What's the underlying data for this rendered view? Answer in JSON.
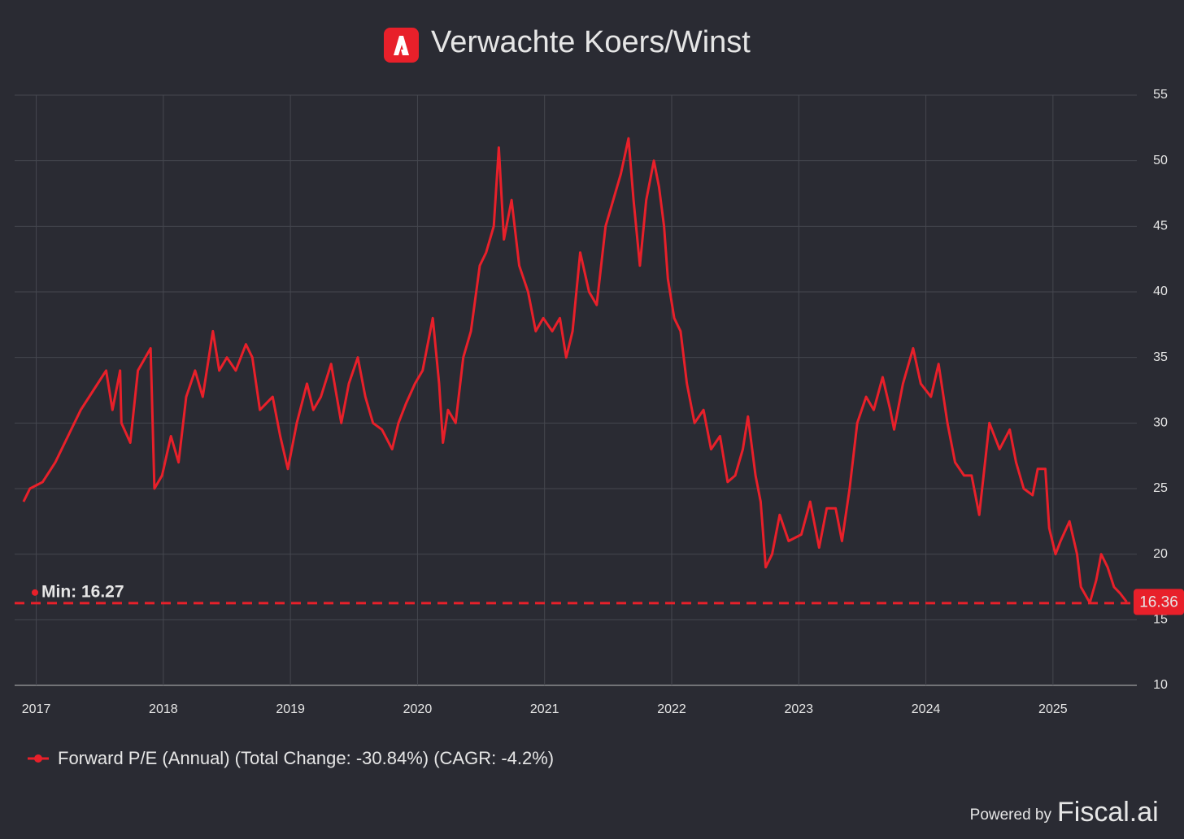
{
  "chart_data": {
    "type": "line",
    "title": "Verwachte Koers/Winst",
    "series": [
      {
        "name": "Forward P/E (Annual) (Total Change: -30.84%) (CAGR: -4.2%)",
        "color": "#e8202a",
        "x": [
          2016.9,
          2016.95,
          2017.05,
          2017.15,
          2017.25,
          2017.35,
          2017.45,
          2017.55,
          2017.6,
          2017.66,
          2017.67,
          2017.74,
          2017.8,
          2017.9,
          2017.93,
          2017.99,
          2018.06,
          2018.12,
          2018.18,
          2018.25,
          2018.31,
          2018.39,
          2018.44,
          2018.5,
          2018.57,
          2018.65,
          2018.7,
          2018.76,
          2018.86,
          2018.92,
          2018.98,
          2019.05,
          2019.13,
          2019.18,
          2019.24,
          2019.32,
          2019.4,
          2019.46,
          2019.53,
          2019.59,
          2019.65,
          2019.72,
          2019.8,
          2019.85,
          2019.91,
          2019.98,
          2020.04,
          2020.12,
          2020.17,
          2020.2,
          2020.24,
          2020.3,
          2020.36,
          2020.42,
          2020.49,
          2020.54,
          2020.6,
          2020.64,
          2020.68,
          2020.74,
          2020.8,
          2020.87,
          2020.93,
          2020.99,
          2021.06,
          2021.12,
          2021.17,
          2021.22,
          2021.28,
          2021.35,
          2021.41,
          2021.48,
          2021.54,
          2021.6,
          2021.66,
          2021.7,
          2021.75,
          2021.8,
          2021.86,
          2021.9,
          2021.94,
          2021.97,
          2022.02,
          2022.07,
          2022.12,
          2022.18,
          2022.25,
          2022.31,
          2022.38,
          2022.44,
          2022.5,
          2022.56,
          2022.6,
          2022.66,
          2022.7,
          2022.74,
          2022.79,
          2022.85,
          2022.92,
          2023.02,
          2023.09,
          2023.16,
          2023.22,
          2023.29,
          2023.34,
          2023.4,
          2023.46,
          2023.53,
          2023.59,
          2023.66,
          2023.72,
          2023.75,
          2023.82,
          2023.9,
          2023.96,
          2024.04,
          2024.1,
          2024.17,
          2024.23,
          2024.3,
          2024.36,
          2024.42,
          2024.5,
          2024.58,
          2024.66,
          2024.71,
          2024.77,
          2024.84,
          2024.88,
          2024.94,
          2024.97,
          2025.02,
          2025.06,
          2025.13,
          2025.19,
          2025.22,
          2025.29,
          2025.34,
          2025.38,
          2025.43,
          2025.48,
          2025.53,
          2025.58
        ],
        "values": [
          24,
          25,
          25.5,
          27,
          29,
          31,
          32.5,
          34,
          31,
          34,
          30,
          28.5,
          34,
          35.7,
          25,
          26,
          29,
          27,
          32,
          34,
          32,
          37,
          34,
          35,
          34,
          36,
          35,
          31,
          32,
          29,
          26.5,
          30,
          33,
          31,
          32,
          34.5,
          30,
          33,
          35,
          32,
          30,
          29.5,
          28,
          30,
          31.5,
          33,
          34,
          38,
          33,
          28.5,
          31,
          30,
          35,
          37,
          42,
          43,
          45,
          51,
          44,
          47,
          42,
          40,
          37,
          38,
          37,
          38,
          35,
          37,
          43,
          40,
          39,
          45,
          47,
          49,
          51.7,
          47,
          42,
          47,
          50,
          48,
          45,
          41,
          38,
          37,
          33,
          30,
          31,
          28,
          29,
          25.5,
          26,
          28,
          30.5,
          26,
          24,
          19,
          20,
          23,
          21,
          21.5,
          24,
          20.5,
          23.5,
          23.5,
          21,
          25,
          30,
          32,
          31,
          33.5,
          31,
          29.5,
          33,
          35.7,
          33,
          32,
          34.5,
          30,
          27,
          26,
          26,
          23,
          30,
          28,
          29.5,
          27,
          25,
          24.5,
          26.5,
          26.5,
          22,
          20,
          21,
          22.5,
          20,
          17.5,
          16.3,
          18,
          20,
          19,
          17.5,
          17,
          16.36
        ]
      }
    ],
    "min_label": "Min: 16.27",
    "min_value": 16.27,
    "xlim": [
      2016.83,
      2025.66
    ],
    "xticks": [
      2017,
      2018,
      2019,
      2020,
      2021,
      2022,
      2023,
      2024,
      2025
    ],
    "ylim": [
      10,
      55
    ],
    "yticks": [
      10,
      15,
      20,
      25,
      30,
      35,
      40,
      45,
      50,
      55
    ],
    "grid": true,
    "footer_prefix": "Powered by",
    "footer_brand": "Fiscal.ai"
  }
}
